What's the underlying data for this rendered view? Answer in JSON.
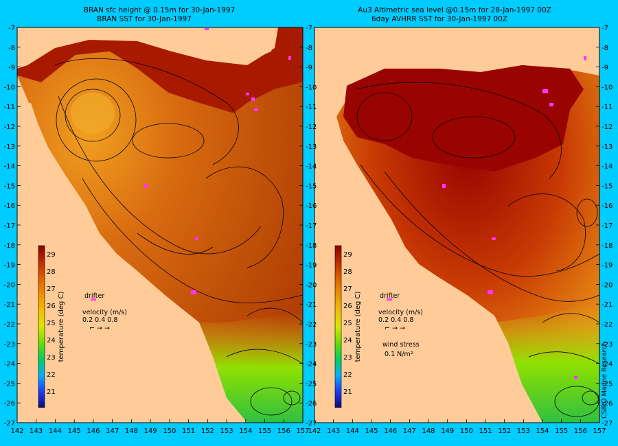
{
  "colors": {
    "frame": "#00ccff",
    "land": "#ffcc99",
    "drifter": "#ff33ff",
    "colorbar_stops": [
      "#0a0a78",
      "#1c3cff",
      "#00b0ff",
      "#00d060",
      "#66e000",
      "#d8e800",
      "#f0c000",
      "#f09000",
      "#e06000",
      "#c02800",
      "#8c0000"
    ]
  },
  "panels": [
    {
      "title_line1": "BRAN sfc height @ 0.15m for 30-Jan-1997",
      "title_line2": "BRAN SST for 30-Jan-1997",
      "colorbar_label": "temperature (deg C)",
      "drifter_label": "drifter",
      "velocity_label": "velocity (m/s)",
      "velocity_scale": "0.2 0.4 0.8",
      "velocity_arrows": "⌐ → →",
      "wind_label": "",
      "wind_scale": ""
    },
    {
      "title_line1": "Au3 Altimetric sea level  @0.15m  for 28-Jan-1997 00Z",
      "title_line2": "6day AVHRR SST for 30-Jan-1997 00Z",
      "colorbar_label": "temperature (deg C)",
      "drifter_label": "drifter",
      "velocity_label": "velocity (m/s)",
      "velocity_scale": "0.2 0.4 0.8",
      "velocity_arrows": "⌐ → →",
      "wind_label": "wind stress",
      "wind_scale": "0.1 N/m²"
    }
  ],
  "x_ticks": [
    "142",
    "143",
    "144",
    "145",
    "146",
    "147",
    "148",
    "149",
    "150",
    "151",
    "152",
    "153",
    "154",
    "155",
    "156",
    "157"
  ],
  "y_ticks": [
    "-7",
    "-8",
    "-9",
    "-10",
    "-11",
    "-12",
    "-13",
    "-14",
    "-15",
    "-16",
    "-17",
    "-18",
    "-19",
    "-20",
    "-21",
    "-22",
    "-23",
    "-24",
    "-25",
    "-26",
    "-27"
  ],
  "colorbar_ticks": [
    "29",
    "28",
    "27",
    "26",
    "25",
    "24",
    "23",
    "22",
    "21"
  ],
  "credit": "CSIRO Marine Research"
}
